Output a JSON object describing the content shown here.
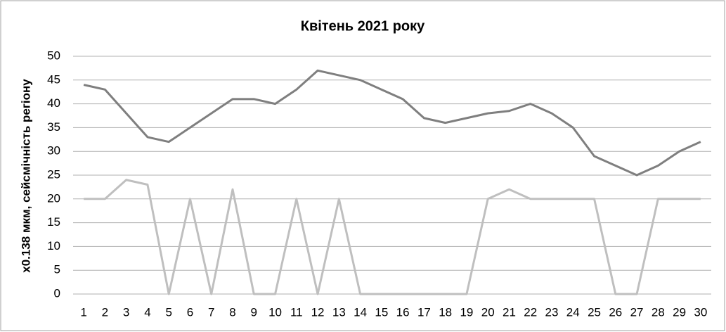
{
  "chart_data": {
    "type": "line",
    "title": "Квітень 2021 року",
    "y_label": "x0.138 мкм, сейсмічність регіону",
    "categories": [
      "1",
      "2",
      "3",
      "4",
      "5",
      "6",
      "7",
      "8",
      "9",
      "10",
      "11",
      "12",
      "13",
      "14",
      "15",
      "16",
      "17",
      "18",
      "19",
      "20",
      "21",
      "22",
      "23",
      "24",
      "25",
      "26",
      "27",
      "28",
      "29",
      "30"
    ],
    "series": [
      {
        "color": "#7f7f7f",
        "values": [
          44,
          43,
          38,
          33,
          32,
          35,
          38,
          41,
          41,
          40,
          43,
          47,
          46,
          45,
          43,
          41,
          37,
          36,
          37,
          38,
          38.5,
          40,
          38,
          35,
          29,
          27,
          25,
          27,
          30,
          32
        ]
      },
      {
        "color": "#bfbfbf",
        "values": [
          20,
          20,
          24,
          23,
          0,
          20,
          0,
          22,
          0,
          0,
          20,
          0,
          20,
          0,
          0,
          0,
          0,
          0,
          0,
          20,
          22,
          20,
          20,
          20,
          20,
          0,
          0,
          20,
          20,
          20
        ]
      }
    ],
    "ylim": [
      0,
      50
    ],
    "yticks": [
      0,
      5,
      10,
      15,
      20,
      25,
      30,
      35,
      40,
      45,
      50
    ],
    "grid": true
  }
}
